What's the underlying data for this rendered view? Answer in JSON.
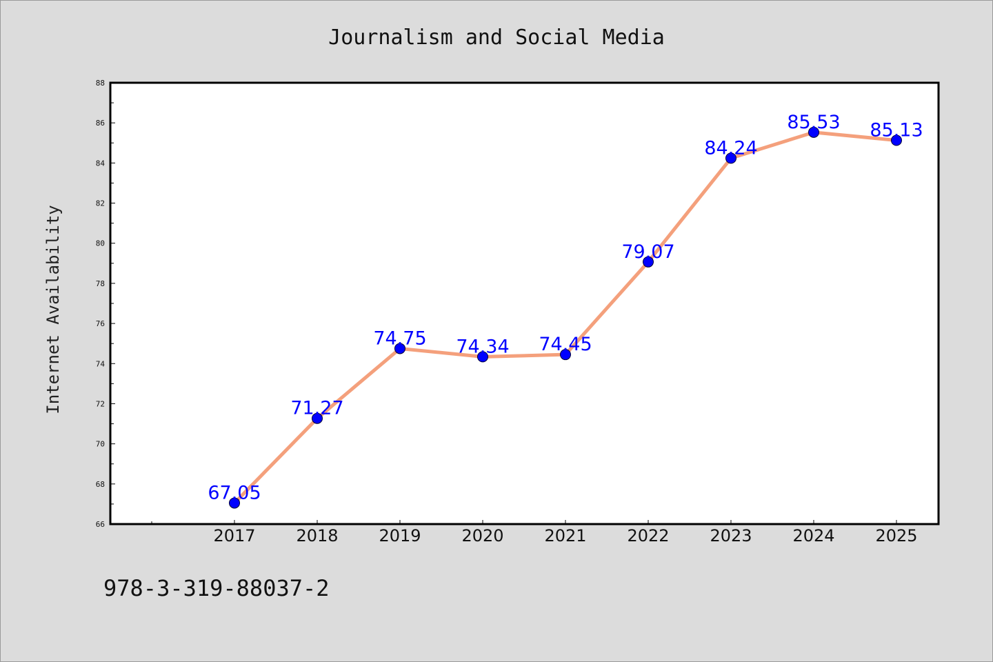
{
  "chart_data": {
    "type": "line",
    "title": "Journalism and Social Media",
    "xlabel": "",
    "ylabel": "Internet Availability",
    "categories": [
      "2017",
      "2018",
      "2019",
      "2020",
      "2021",
      "2022",
      "2023",
      "2024",
      "2025"
    ],
    "values": [
      67.05,
      71.27,
      74.75,
      74.34,
      74.45,
      79.07,
      84.24,
      85.53,
      85.13
    ],
    "data_labels": [
      "67.05",
      "71.27",
      "74.75",
      "74.34",
      "74.45",
      "79.07",
      "84.24",
      "85.53",
      "85.13"
    ],
    "ylim": [
      66,
      88
    ],
    "yticks": [
      "66",
      "68",
      "70",
      "72",
      "74",
      "76",
      "78",
      "80",
      "82",
      "84",
      "86",
      "88"
    ],
    "grid": false,
    "legend": "none",
    "line_color": "#f4a07c",
    "marker_color": "#0000ff",
    "label_color": "#0000ff"
  },
  "footer_text": "978-3-319-88037-2"
}
